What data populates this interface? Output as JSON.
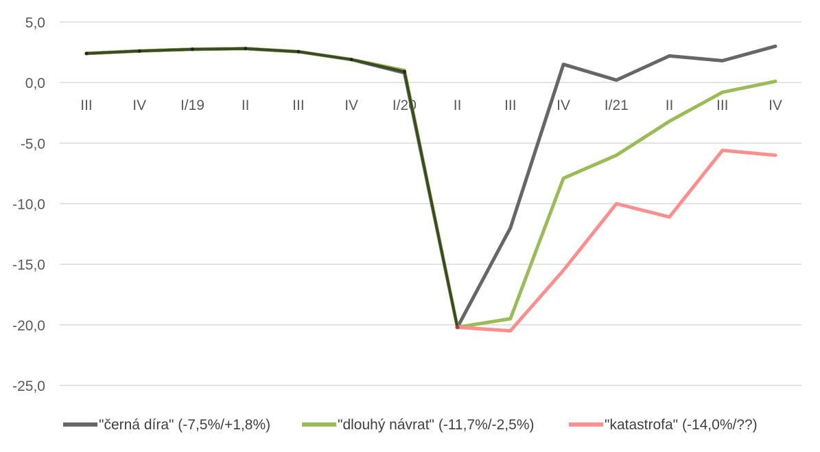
{
  "chart_data": {
    "type": "line",
    "title": "",
    "xlabel": "",
    "ylabel": "",
    "categories": [
      "III",
      "IV",
      "I/19",
      "II",
      "III",
      "IV",
      "I/20",
      "II",
      "III",
      "IV",
      "I/21",
      "II",
      "III",
      "IV"
    ],
    "ylim": [
      -25.0,
      5.0
    ],
    "yticks": [
      5.0,
      0.0,
      -5.0,
      -10.0,
      -15.0,
      -20.0,
      -25.0
    ],
    "ytick_labels": [
      "5,0",
      "0,0",
      "-5,0",
      "-10,0",
      "-15,0",
      "-20,0",
      "-25,0"
    ],
    "grid": true,
    "legend_position": "bottom",
    "series": [
      {
        "name": "\"černá díra\" (-7,5%/+1,8%)",
        "color": "#666666",
        "values": [
          2.4,
          2.6,
          2.75,
          2.8,
          2.55,
          1.9,
          0.8,
          -20.2,
          -12.0,
          1.5,
          0.2,
          2.2,
          1.8,
          3.0
        ]
      },
      {
        "name": "\"dlouhý návrat\" (-11,7%/-2,5%)",
        "color": "#9bbb59",
        "values": [
          2.4,
          2.6,
          2.75,
          2.8,
          2.55,
          1.9,
          1.0,
          -20.2,
          -19.5,
          -7.9,
          -6.0,
          -3.2,
          -0.8,
          0.1
        ]
      },
      {
        "name": "\"katastrofa\" (-14,0%/??)",
        "color": "#ff8f8f",
        "values": [
          null,
          null,
          null,
          null,
          null,
          null,
          null,
          -20.2,
          -20.5,
          -15.5,
          -10.0,
          -11.1,
          -5.6,
          -6.0
        ]
      }
    ],
    "prefix_series": {
      "color": "#3a4a24",
      "values": [
        2.4,
        2.6,
        2.75,
        2.8,
        2.55,
        1.9,
        0.9,
        -20.2
      ]
    }
  }
}
